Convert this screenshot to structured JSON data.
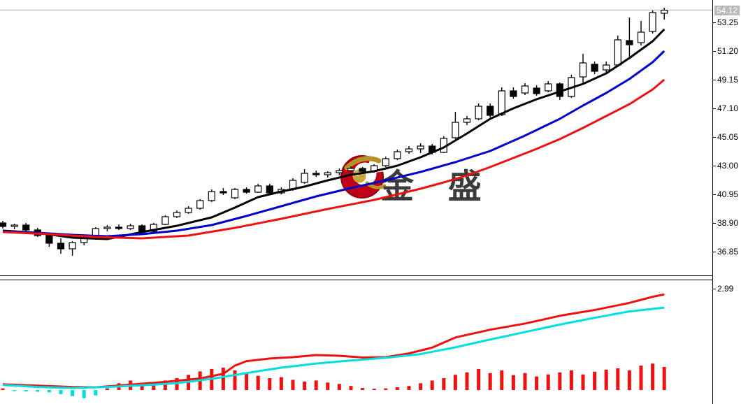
{
  "watermark": {
    "text": "金 盛"
  },
  "colors": {
    "up_candle_fill": "#ffffff",
    "down_candle_fill": "#000000",
    "candle_outline": "#000000",
    "ma_fast": "#000000",
    "ma_mid": "#0000cc",
    "ma_slow": "#ee1111",
    "indicator_signal": "#ee1111",
    "indicator_main": "#00dede",
    "histogram_positive": "#ee1111",
    "histogram_negative": "#00dede",
    "current_price_line": "#d3d3d3",
    "current_price_tag_bg": "#b9b9b9",
    "logo_red": "#bf0016",
    "logo_gold": "#b79327",
    "watermark_text_color": "#3b3b3b"
  },
  "chart_data": [
    {
      "type": "candlestick",
      "name": "price-panel",
      "current_price": 54.12,
      "current_price_label": "54.12",
      "y_ticks": [
        53.25,
        51.2,
        49.15,
        47.1,
        45.05,
        43.0,
        40.95,
        38.9,
        36.85
      ],
      "candles": [
        [
          38.9,
          39.05,
          38.5,
          38.65
        ],
        [
          38.65,
          38.85,
          38.45,
          38.75
        ],
        [
          38.75,
          38.9,
          38.3,
          38.4
        ],
        [
          38.4,
          38.55,
          37.9,
          38.0
        ],
        [
          38.0,
          38.15,
          37.2,
          37.45
        ],
        [
          37.45,
          37.8,
          36.7,
          37.05
        ],
        [
          37.05,
          37.6,
          36.55,
          37.5
        ],
        [
          37.5,
          37.9,
          37.3,
          37.8
        ],
        [
          37.8,
          38.6,
          37.7,
          38.5
        ],
        [
          38.5,
          38.75,
          38.3,
          38.6
        ],
        [
          38.6,
          38.8,
          38.4,
          38.5
        ],
        [
          38.5,
          38.85,
          38.4,
          38.7
        ],
        [
          38.7,
          38.8,
          38.2,
          38.3
        ],
        [
          38.3,
          38.9,
          38.25,
          38.8
        ],
        [
          38.8,
          39.45,
          38.75,
          39.35
        ],
        [
          39.35,
          39.8,
          39.25,
          39.65
        ],
        [
          39.65,
          40.1,
          39.55,
          39.95
        ],
        [
          39.95,
          40.6,
          39.85,
          40.5
        ],
        [
          40.5,
          41.3,
          40.4,
          41.15
        ],
        [
          41.15,
          41.4,
          40.9,
          41.05
        ],
        [
          40.7,
          41.4,
          40.6,
          41.3
        ],
        [
          41.3,
          41.45,
          41.0,
          41.1
        ],
        [
          41.1,
          41.7,
          41.05,
          41.55
        ],
        [
          41.55,
          41.7,
          40.9,
          41.05
        ],
        [
          41.05,
          41.45,
          40.95,
          41.3
        ],
        [
          41.3,
          42.1,
          41.2,
          41.95
        ],
        [
          41.8,
          42.75,
          41.7,
          42.45
        ],
        [
          42.45,
          42.65,
          42.2,
          42.35
        ],
        [
          42.35,
          42.6,
          42.15,
          42.5
        ],
        [
          42.5,
          42.8,
          42.3,
          42.65
        ],
        [
          42.65,
          42.95,
          42.5,
          42.8
        ],
        [
          42.8,
          42.9,
          42.45,
          42.6
        ],
        [
          42.6,
          43.1,
          42.5,
          43.0
        ],
        [
          43.0,
          43.65,
          42.9,
          43.5
        ],
        [
          43.5,
          44.15,
          43.4,
          44.0
        ],
        [
          44.0,
          44.4,
          43.85,
          44.2
        ],
        [
          44.2,
          44.6,
          43.9,
          44.4
        ],
        [
          44.4,
          44.55,
          43.8,
          43.95
        ],
        [
          43.95,
          45.1,
          43.9,
          44.95
        ],
        [
          45.0,
          46.85,
          44.9,
          46.1
        ],
        [
          46.1,
          46.55,
          45.9,
          46.35
        ],
        [
          46.35,
          47.45,
          46.25,
          47.25
        ],
        [
          47.25,
          47.45,
          46.45,
          46.6
        ],
        [
          46.65,
          48.6,
          46.55,
          48.35
        ],
        [
          48.35,
          48.6,
          47.8,
          47.95
        ],
        [
          48.2,
          48.9,
          48.05,
          48.7
        ],
        [
          48.55,
          48.75,
          48.0,
          48.15
        ],
        [
          48.35,
          49.05,
          48.25,
          48.85
        ],
        [
          48.85,
          48.95,
          47.7,
          47.95
        ],
        [
          47.95,
          49.5,
          47.85,
          49.3
        ],
        [
          49.35,
          51.0,
          48.85,
          50.35
        ],
        [
          50.25,
          50.45,
          49.55,
          49.75
        ],
        [
          49.85,
          50.45,
          49.65,
          50.2
        ],
        [
          50.2,
          52.3,
          50.05,
          52.0
        ],
        [
          51.95,
          53.6,
          50.6,
          51.65
        ],
        [
          51.8,
          53.35,
          51.6,
          52.55
        ],
        [
          52.6,
          54.1,
          52.45,
          53.95
        ],
        [
          53.9,
          54.3,
          53.45,
          54.12
        ]
      ],
      "overlays": [
        {
          "name": "ma-fast",
          "color": "#000000",
          "points": [
            [
              0,
              38.35
            ],
            [
              3,
              38.2
            ],
            [
              6,
              37.85
            ],
            [
              9,
              37.75
            ],
            [
              12,
              38.25
            ],
            [
              15,
              38.7
            ],
            [
              18,
              39.3
            ],
            [
              20,
              40.0
            ],
            [
              22,
              40.75
            ],
            [
              24,
              41.15
            ],
            [
              26,
              41.5
            ],
            [
              28,
              41.95
            ],
            [
              30,
              42.35
            ],
            [
              32,
              42.6
            ],
            [
              34,
              43.0
            ],
            [
              36,
              43.6
            ],
            [
              38,
              44.3
            ],
            [
              40,
              45.3
            ],
            [
              42,
              46.35
            ],
            [
              44,
              47.1
            ],
            [
              46,
              47.75
            ],
            [
              48,
              48.3
            ],
            [
              50,
              48.85
            ],
            [
              52,
              49.6
            ],
            [
              54,
              50.7
            ],
            [
              56,
              51.9
            ],
            [
              57,
              52.75
            ]
          ]
        },
        {
          "name": "ma-mid",
          "color": "#0000cc",
          "points": [
            [
              0,
              38.3
            ],
            [
              3,
              38.2
            ],
            [
              6,
              38.05
            ],
            [
              9,
              37.95
            ],
            [
              12,
              38.1
            ],
            [
              15,
              38.35
            ],
            [
              18,
              38.75
            ],
            [
              21,
              39.4
            ],
            [
              24,
              40.1
            ],
            [
              27,
              40.8
            ],
            [
              30,
              41.4
            ],
            [
              33,
              41.95
            ],
            [
              36,
              42.55
            ],
            [
              39,
              43.25
            ],
            [
              42,
              44.05
            ],
            [
              45,
              45.15
            ],
            [
              48,
              46.35
            ],
            [
              50,
              47.3
            ],
            [
              52,
              48.2
            ],
            [
              54,
              49.2
            ],
            [
              56,
              50.4
            ],
            [
              57,
              51.2
            ]
          ]
        },
        {
          "name": "ma-slow",
          "color": "#ee1111",
          "points": [
            [
              0,
              38.25
            ],
            [
              4,
              38.1
            ],
            [
              8,
              37.9
            ],
            [
              12,
              37.8
            ],
            [
              16,
              38.0
            ],
            [
              20,
              38.55
            ],
            [
              24,
              39.2
            ],
            [
              28,
              39.9
            ],
            [
              32,
              40.55
            ],
            [
              36,
              41.35
            ],
            [
              38,
              41.8
            ],
            [
              40,
              42.3
            ],
            [
              42,
              42.9
            ],
            [
              44,
              43.55
            ],
            [
              46,
              44.2
            ],
            [
              48,
              44.9
            ],
            [
              50,
              45.7
            ],
            [
              52,
              46.55
            ],
            [
              54,
              47.4
            ],
            [
              56,
              48.45
            ],
            [
              57,
              49.15
            ]
          ]
        }
      ]
    },
    {
      "type": "macd",
      "name": "indicator-panel",
      "y_ticks": [
        2.99
      ],
      "histogram": {
        "positive_color": "#ee1111",
        "negative_color": "#00dede",
        "values": [
          0.05,
          -0.03,
          -0.04,
          -0.05,
          -0.07,
          -0.12,
          -0.18,
          -0.24,
          -0.16,
          0.05,
          0.2,
          0.28,
          0.12,
          0.2,
          0.28,
          0.35,
          0.45,
          0.55,
          0.62,
          0.66,
          0.58,
          0.5,
          0.42,
          0.35,
          0.38,
          0.3,
          0.25,
          0.28,
          0.22,
          0.18,
          0.12,
          0.06,
          0.04,
          0.05,
          0.08,
          0.12,
          0.2,
          0.28,
          0.35,
          0.45,
          0.52,
          0.62,
          0.5,
          0.58,
          0.44,
          0.5,
          0.4,
          0.46,
          0.52,
          0.58,
          0.46,
          0.54,
          0.6,
          0.64,
          0.58,
          0.72,
          0.78,
          0.68
        ]
      },
      "lines": [
        {
          "name": "signal-line",
          "color": "#ee1111",
          "points": [
            [
              0,
              0.17
            ],
            [
              3,
              0.13
            ],
            [
              6,
              0.09
            ],
            [
              8,
              0.08
            ],
            [
              11,
              0.16
            ],
            [
              14,
              0.24
            ],
            [
              17,
              0.34
            ],
            [
              19,
              0.48
            ],
            [
              20,
              0.72
            ],
            [
              21,
              0.85
            ],
            [
              23,
              0.93
            ],
            [
              25,
              0.97
            ],
            [
              27,
              1.03
            ],
            [
              29,
              1.01
            ],
            [
              31,
              0.96
            ],
            [
              33,
              0.97
            ],
            [
              35,
              1.08
            ],
            [
              37,
              1.25
            ],
            [
              39,
              1.55
            ],
            [
              42,
              1.78
            ],
            [
              45,
              1.96
            ],
            [
              48,
              2.19
            ],
            [
              51,
              2.36
            ],
            [
              54,
              2.57
            ],
            [
              56,
              2.75
            ],
            [
              57,
              2.82
            ]
          ]
        },
        {
          "name": "main-line",
          "color": "#00dede",
          "points": [
            [
              0,
              0.15
            ],
            [
              3,
              0.09
            ],
            [
              6,
              0.06
            ],
            [
              9,
              0.09
            ],
            [
              12,
              0.14
            ],
            [
              15,
              0.2
            ],
            [
              18,
              0.33
            ],
            [
              21,
              0.5
            ],
            [
              24,
              0.66
            ],
            [
              27,
              0.78
            ],
            [
              30,
              0.87
            ],
            [
              33,
              0.95
            ],
            [
              36,
              1.06
            ],
            [
              39,
              1.26
            ],
            [
              42,
              1.49
            ],
            [
              45,
              1.71
            ],
            [
              48,
              1.93
            ],
            [
              51,
              2.13
            ],
            [
              54,
              2.32
            ],
            [
              57,
              2.43
            ]
          ]
        }
      ]
    }
  ]
}
